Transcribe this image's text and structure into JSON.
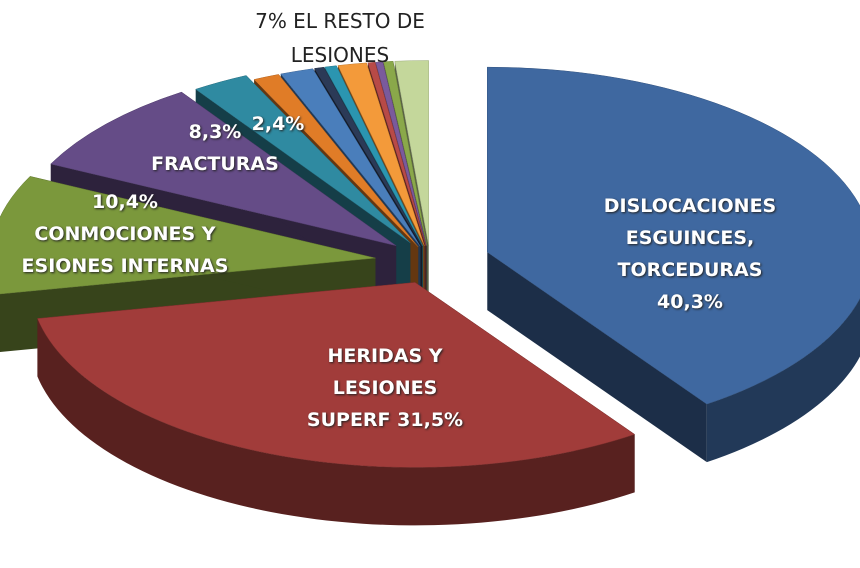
{
  "chart_data": {
    "type": "pie3d",
    "annotation": "7% EL RESTO DE LESIONES",
    "categories": [
      "DISLOCACIONES ESGUINCES, TORCEDURAS",
      "HERIDAS Y LESIONES SUPERF",
      "CONMOCIONES Y ESIONES INTERNAS",
      "FRACTURAS",
      null,
      null,
      null,
      null,
      null,
      null,
      null,
      null,
      null,
      null
    ],
    "values": [
      40.3,
      31.5,
      10.4,
      8.3,
      2.4,
      1.1,
      1.4,
      0.4,
      0.5,
      1.2,
      0.3,
      0.3,
      0.4,
      1.4
    ],
    "value_labels": [
      "40,3%",
      "31,5%",
      "10,4%",
      "8,3%",
      "2,4%",
      null,
      null,
      null,
      null,
      null,
      null,
      null,
      null,
      null
    ],
    "colors": [
      "#3f68a0",
      "#a13c3a",
      "#7b983c",
      "#654c87",
      "#2f8aa1",
      "#e07c27",
      "#4a7ebb",
      "#2b3a57",
      "#2b95b0",
      "#f39a3a",
      "#b84a47",
      "#7a5a9c",
      "#8aa84a",
      "#c4d79b"
    ]
  }
}
